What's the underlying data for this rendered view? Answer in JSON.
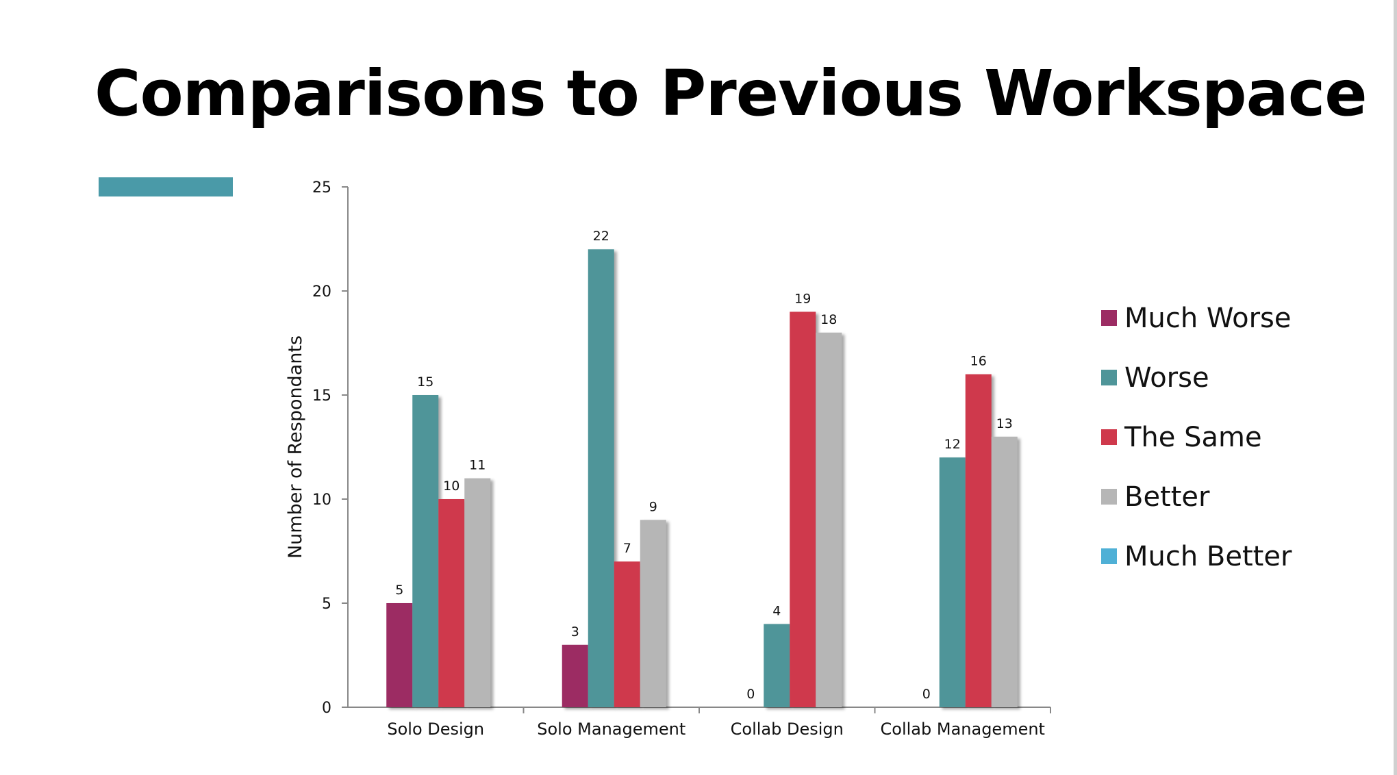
{
  "slide": {
    "title": "Comparisons to Previous Workspace",
    "accent_color": "#4a9aa8"
  },
  "chart_data": {
    "type": "bar",
    "categories": [
      "Solo Design",
      "Solo Management",
      "Collab Design",
      "Collab Management"
    ],
    "series": [
      {
        "name": "Much Worse",
        "color": "#9c2c63",
        "values": [
          5,
          3,
          0,
          0
        ]
      },
      {
        "name": "Worse",
        "color": "#4f9599",
        "values": [
          15,
          22,
          4,
          12
        ]
      },
      {
        "name": "The Same",
        "color": "#cf394c",
        "values": [
          10,
          7,
          19,
          16
        ]
      },
      {
        "name": "Better",
        "color": "#b6b6b6",
        "values": [
          11,
          9,
          18,
          13
        ]
      },
      {
        "name": "Much Better",
        "color": "#4fb0d6",
        "values": [
          null,
          null,
          null,
          null
        ]
      }
    ],
    "title": "",
    "xlabel": "",
    "ylabel": "Number of Respondants",
    "ylim": [
      0,
      25
    ],
    "yticks": [
      0,
      5,
      10,
      15,
      20,
      25
    ],
    "grid": false,
    "legend": "right"
  }
}
